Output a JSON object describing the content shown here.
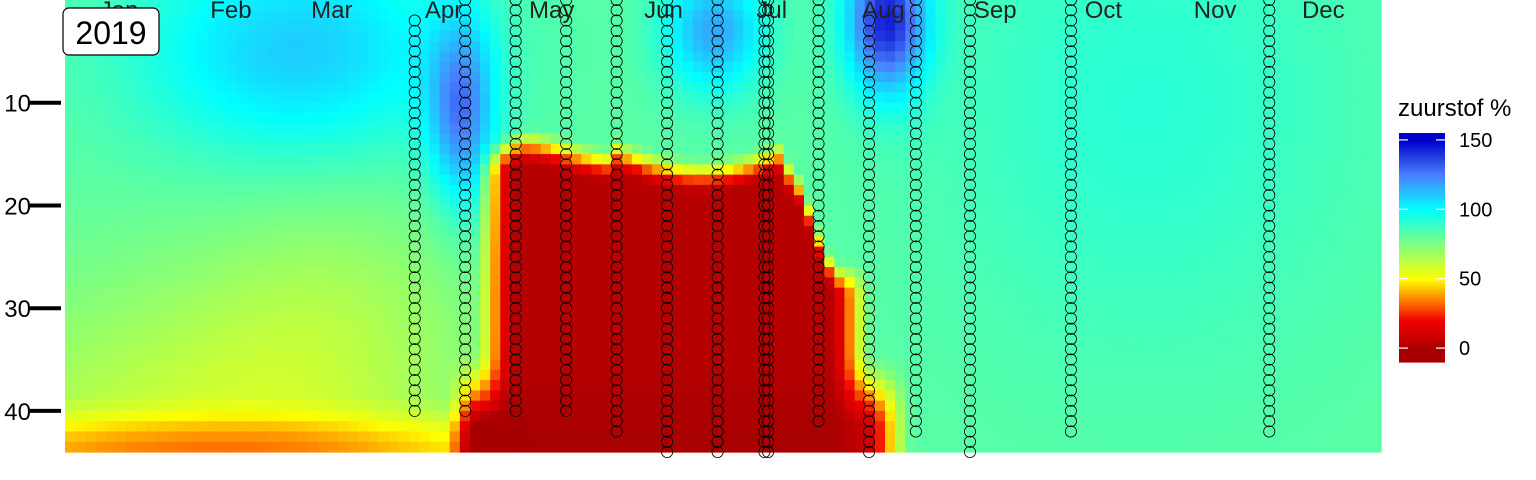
{
  "chart_data": {
    "type": "heatmap",
    "panel_label": "2019",
    "x_months": [
      "Jan",
      "Feb",
      "Mar",
      "Apr",
      "May",
      "Jun",
      "Jul",
      "Aug",
      "Sep",
      "Oct",
      "Nov",
      "Dec"
    ],
    "x_range_doy": [
      0,
      365
    ],
    "y_ticks": [
      10,
      20,
      30,
      40
    ],
    "y_range": [
      0,
      44
    ],
    "y_reversed": true,
    "legend": {
      "title": "zuurstof %",
      "ticks": [
        0,
        50,
        100,
        150
      ],
      "range": [
        -10,
        155
      ],
      "colors": {
        "0": "#a80000",
        "10": "#d40000",
        "20": "#ee0000",
        "35": "#ff7f00",
        "50": "#ffff00",
        "75": "#7fff7f",
        "100": "#00ffff",
        "125": "#4a7fff",
        "150": "#0000c8"
      }
    },
    "samples": [
      {
        "doy": 97,
        "depths": [
          2,
          40
        ]
      },
      {
        "doy": 111,
        "depths": [
          0,
          40
        ]
      },
      {
        "doy": 125,
        "depths": [
          0,
          40
        ]
      },
      {
        "doy": 139,
        "depths": [
          0,
          40
        ]
      },
      {
        "doy": 153,
        "depths": [
          0,
          42
        ]
      },
      {
        "doy": 167,
        "depths": [
          0,
          44
        ]
      },
      {
        "doy": 181,
        "depths": [
          0,
          44
        ]
      },
      {
        "doy": 194,
        "depths": [
          0,
          44
        ]
      },
      {
        "doy": 195,
        "depths": [
          0,
          44
        ]
      },
      {
        "doy": 209,
        "depths": [
          0,
          41
        ]
      },
      {
        "doy": 223,
        "depths": [
          2,
          44
        ]
      },
      {
        "doy": 236,
        "depths": [
          0,
          42
        ]
      },
      {
        "doy": 251,
        "depths": [
          0,
          44
        ]
      },
      {
        "doy": 279,
        "depths": [
          0,
          42
        ]
      },
      {
        "doy": 334,
        "depths": [
          0,
          42
        ]
      }
    ]
  }
}
